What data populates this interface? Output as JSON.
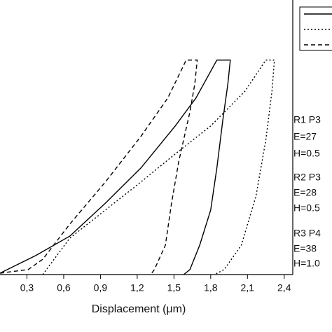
{
  "chart_data": {
    "type": "line",
    "xlabel": "Displacement (μm)",
    "xlim": [
      0.08,
      2.47
    ],
    "xticks": [
      {
        "value": 0.3,
        "label": "0,3"
      },
      {
        "value": 0.6,
        "label": "0,6"
      },
      {
        "value": 0.9,
        "label": "0,9"
      },
      {
        "value": 1.2,
        "label": "1,2"
      },
      {
        "value": 1.5,
        "label": "1,5"
      },
      {
        "value": 1.8,
        "label": "1,8"
      },
      {
        "value": 2.1,
        "label": "2,1"
      },
      {
        "value": 2.4,
        "label": "2,4"
      }
    ],
    "ylim": [
      0,
      100
    ],
    "series": [
      {
        "color": "#000000",
        "style": "solid",
        "x": [
          0.08,
          0.37,
          0.65,
          0.94,
          1.23,
          1.51,
          1.68,
          1.85,
          1.96,
          1.94,
          1.9,
          1.85,
          1.8,
          1.71,
          1.63,
          1.58
        ],
        "values": [
          0.5,
          6.9,
          14.0,
          26.0,
          38.8,
          54.1,
          64.3,
          78.1,
          78.1,
          69.4,
          56.6,
          38.8,
          23.5,
          10.7,
          1.8,
          0
        ]
      },
      {
        "color": "#000000",
        "style": "dotted",
        "x": [
          0.43,
          0.48,
          0.65,
          0.94,
          1.23,
          1.51,
          1.8,
          2.08,
          2.25,
          2.32,
          2.3,
          2.25,
          2.17,
          2.05,
          1.91,
          1.83
        ],
        "values": [
          0,
          3.1,
          13.3,
          23.5,
          33.7,
          43.9,
          54.1,
          66.8,
          78.1,
          78.1,
          66.8,
          49.0,
          28.6,
          10.7,
          1.8,
          0
        ]
      },
      {
        "color": "#000000",
        "style": "dashed",
        "x": [
          0.08,
          0.31,
          0.43,
          0.65,
          0.94,
          1.23,
          1.45,
          1.6,
          1.69,
          1.67,
          1.63,
          1.54,
          1.48,
          1.43,
          1.34,
          1.31
        ],
        "values": [
          0.5,
          1.8,
          5.6,
          18.4,
          33.7,
          50.3,
          64.3,
          78.1,
          78.1,
          69.4,
          59.2,
          41.3,
          26.0,
          10.7,
          1.8,
          0
        ]
      }
    ],
    "annotations": [
      "R1 P3",
      "E=27",
      "H=0.5",
      "R2 P3",
      "E=28",
      "H=0.5",
      "R3 P4",
      "E=38",
      "H=1.0"
    ]
  }
}
